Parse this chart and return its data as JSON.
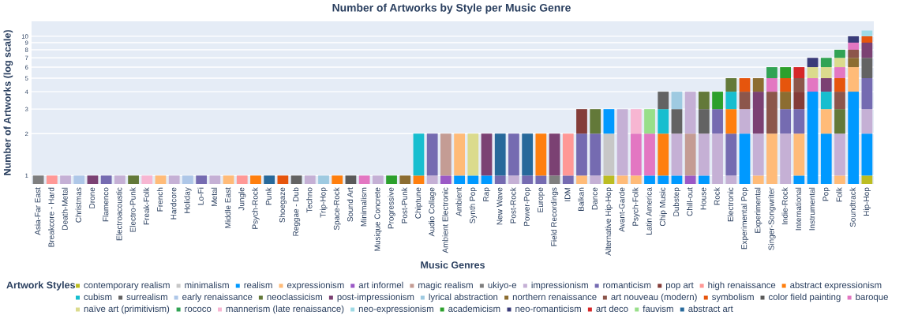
{
  "chart_data": {
    "type": "bar",
    "stacked": true,
    "log": true,
    "grid": "y",
    "legend": "bottom",
    "title": "Number of Artworks by Style per Music Genre",
    "xlabel": "Music Genres",
    "ylabel": "Number of Artworks (log scale)",
    "legend_title": "Artwork Styles",
    "ylim": [
      0.87,
      12.8
    ],
    "yticks": [
      1,
      2,
      3,
      4,
      5,
      6,
      7,
      8,
      9,
      10
    ],
    "categories": [
      "Asia-Far East",
      "Breakcore - Hard",
      "Death-Metal",
      "Christmas",
      "Drone",
      "Flamenco",
      "Electroacoustic",
      "Electro-Punk",
      "Freak-Folk",
      "French",
      "Hardcore",
      "Holiday",
      "Lo-Fi",
      "Metal",
      "Middle East",
      "Jungle",
      "Psych-Rock",
      "Punk",
      "Shoegaze",
      "Reggae - Dub",
      "Techno",
      "Trip-Hop",
      "Space-Rock",
      "Sound Art",
      "Minimalism",
      "Musique Concrete",
      "Progressive",
      "Post-Punk",
      "Chiptune",
      "Audio Collage",
      "Ambient Electronic",
      "Ambient",
      "Synth Pop",
      "Rap",
      "New Wave",
      "Post-Rock",
      "Power-Pop",
      "Europe",
      "Field Recordings",
      "IDM",
      "Balkan",
      "Dance",
      "Alternative Hip-Hop",
      "Avant-Garde",
      "Psych-Folk",
      "Latin America",
      "Chip Music",
      "Dubstep",
      "Chill-out",
      "House",
      "Rock",
      "Electronic",
      "Experimental Pop",
      "Experimental",
      "Singer-Songwriter",
      "Indie-Rock",
      "International",
      "Instrumental",
      "Pop",
      "Folk",
      "Soundtrack",
      "Hip-Hop"
    ],
    "series": [
      {
        "name": "contemporary realism",
        "color": "#bcbd22",
        "values": [
          null,
          null,
          null,
          null,
          null,
          null,
          null,
          null,
          null,
          null,
          null,
          null,
          null,
          null,
          null,
          null,
          null,
          null,
          null,
          null,
          null,
          null,
          null,
          null,
          null,
          null,
          null,
          null,
          null,
          null,
          null,
          null,
          null,
          null,
          null,
          null,
          null,
          null,
          null,
          null,
          null,
          null,
          1,
          null,
          null,
          null,
          null,
          null,
          null,
          null,
          null,
          null,
          null,
          null,
          null,
          null,
          null,
          null,
          null,
          null,
          null,
          1
        ]
      },
      {
        "name": "minimalism",
        "color": "#c7c7c7",
        "values": [
          null,
          null,
          null,
          null,
          null,
          null,
          null,
          null,
          null,
          null,
          null,
          null,
          null,
          null,
          null,
          null,
          null,
          null,
          null,
          null,
          null,
          null,
          null,
          null,
          null,
          null,
          null,
          null,
          null,
          null,
          null,
          null,
          null,
          null,
          null,
          null,
          null,
          null,
          null,
          null,
          null,
          null,
          1,
          null,
          null,
          null,
          null,
          null,
          null,
          null,
          null,
          null,
          null,
          null,
          null,
          null,
          null,
          null,
          null,
          null,
          null,
          null
        ]
      },
      {
        "name": "realism",
        "color": "#0099ff",
        "values": [
          null,
          null,
          null,
          null,
          null,
          null,
          null,
          null,
          null,
          null,
          null,
          null,
          null,
          null,
          null,
          null,
          null,
          null,
          null,
          null,
          null,
          null,
          null,
          null,
          null,
          null,
          null,
          null,
          null,
          null,
          null,
          1,
          1,
          1,
          null,
          null,
          null,
          null,
          null,
          null,
          null,
          null,
          1,
          null,
          null,
          1,
          1,
          1,
          null,
          1,
          null,
          null,
          2,
          null,
          null,
          null,
          1,
          4,
          2,
          null,
          4,
          1
        ]
      },
      {
        "name": "expressionism",
        "color": "#ffbb78",
        "values": [
          null,
          null,
          null,
          null,
          null,
          null,
          null,
          null,
          null,
          1,
          null,
          null,
          null,
          null,
          1,
          null,
          null,
          null,
          null,
          null,
          null,
          null,
          null,
          null,
          null,
          null,
          null,
          null,
          null,
          null,
          null,
          1,
          null,
          null,
          null,
          null,
          null,
          null,
          null,
          null,
          1,
          null,
          null,
          1,
          1,
          null,
          null,
          null,
          null,
          null,
          null,
          null,
          null,
          1,
          2,
          null,
          1,
          null,
          1,
          1,
          2,
          null
        ]
      },
      {
        "name": "art informel",
        "color": "#9b59c6",
        "values": [
          null,
          null,
          null,
          null,
          null,
          null,
          null,
          null,
          null,
          null,
          null,
          null,
          null,
          null,
          null,
          null,
          null,
          null,
          null,
          null,
          null,
          null,
          null,
          null,
          null,
          null,
          null,
          null,
          null,
          null,
          1,
          null,
          null,
          null,
          null,
          null,
          null,
          null,
          null,
          null,
          null,
          null,
          null,
          null,
          null,
          null,
          null,
          null,
          1,
          null,
          null,
          null,
          null,
          null,
          null,
          null,
          null,
          null,
          null,
          null,
          null,
          null
        ]
      },
      {
        "name": "magic realism",
        "color": "#c49c94",
        "values": [
          null,
          null,
          null,
          null,
          null,
          null,
          null,
          null,
          null,
          null,
          null,
          null,
          null,
          null,
          null,
          null,
          null,
          null,
          null,
          null,
          null,
          null,
          null,
          null,
          null,
          null,
          null,
          null,
          null,
          null,
          1,
          null,
          null,
          null,
          null,
          null,
          null,
          null,
          null,
          null,
          null,
          null,
          null,
          null,
          null,
          null,
          null,
          null,
          1,
          null,
          null,
          null,
          null,
          null,
          null,
          null,
          null,
          null,
          null,
          null,
          null,
          null
        ]
      },
      {
        "name": "ukiyo-e",
        "color": "#7f7f7f",
        "values": [
          1,
          null,
          null,
          null,
          null,
          null,
          null,
          null,
          null,
          null,
          null,
          null,
          null,
          null,
          null,
          null,
          null,
          null,
          null,
          null,
          null,
          null,
          null,
          null,
          null,
          null,
          null,
          null,
          null,
          null,
          null,
          null,
          null,
          null,
          null,
          null,
          null,
          null,
          1,
          null,
          null,
          null,
          null,
          null,
          null,
          null,
          null,
          null,
          null,
          null,
          null,
          null,
          null,
          null,
          null,
          null,
          null,
          null,
          null,
          null,
          null,
          null
        ]
      },
      {
        "name": "impressionism",
        "color": "#c5b0d5",
        "values": [
          null,
          null,
          1,
          null,
          null,
          null,
          1,
          null,
          null,
          null,
          1,
          null,
          null,
          1,
          null,
          null,
          null,
          null,
          null,
          null,
          1,
          null,
          null,
          null,
          null,
          1,
          null,
          null,
          null,
          1,
          null,
          null,
          null,
          null,
          null,
          1,
          null,
          null,
          null,
          null,
          null,
          1,
          null,
          2,
          null,
          null,
          null,
          1,
          2,
          1,
          2,
          1,
          1,
          1,
          null,
          2,
          null,
          null,
          null,
          1,
          null,
          1
        ]
      },
      {
        "name": "romanticism",
        "color": "#756bb1",
        "values": [
          null,
          null,
          null,
          null,
          null,
          1,
          null,
          null,
          null,
          null,
          null,
          null,
          1,
          null,
          null,
          null,
          null,
          null,
          null,
          null,
          null,
          null,
          null,
          null,
          null,
          null,
          null,
          null,
          null,
          1,
          null,
          null,
          null,
          null,
          1,
          1,
          1,
          1,
          null,
          1,
          1,
          1,
          null,
          null,
          null,
          null,
          null,
          null,
          null,
          null,
          1,
          1,
          null,
          null,
          null,
          1,
          1,
          null,
          null,
          null,
          null,
          2
        ]
      },
      {
        "name": "pop art",
        "color": "#843c39",
        "values": [
          null,
          null,
          null,
          null,
          null,
          null,
          null,
          null,
          null,
          null,
          null,
          null,
          null,
          null,
          null,
          null,
          null,
          null,
          null,
          null,
          null,
          null,
          null,
          null,
          null,
          null,
          null,
          null,
          null,
          null,
          null,
          null,
          null,
          null,
          null,
          null,
          null,
          null,
          null,
          null,
          1,
          null,
          null,
          null,
          null,
          null,
          null,
          null,
          null,
          null,
          null,
          null,
          null,
          null,
          null,
          null,
          1,
          null,
          null,
          null,
          null,
          null
        ]
      },
      {
        "name": "high renaissance",
        "color": "#ff9896",
        "values": [
          null,
          1,
          null,
          null,
          null,
          null,
          null,
          null,
          null,
          null,
          null,
          null,
          null,
          null,
          null,
          1,
          null,
          null,
          null,
          null,
          null,
          null,
          null,
          null,
          null,
          null,
          null,
          null,
          null,
          null,
          null,
          null,
          null,
          null,
          null,
          null,
          null,
          null,
          null,
          1,
          null,
          null,
          null,
          null,
          null,
          null,
          null,
          null,
          null,
          null,
          null,
          null,
          null,
          null,
          null,
          null,
          null,
          null,
          null,
          null,
          null,
          null
        ]
      },
      {
        "name": "abstract expressionism",
        "color": "#ff7f0e",
        "values": [
          null,
          null,
          null,
          null,
          null,
          null,
          null,
          null,
          null,
          null,
          null,
          null,
          null,
          null,
          null,
          null,
          1,
          null,
          null,
          null,
          null,
          null,
          1,
          null,
          null,
          null,
          null,
          null,
          1,
          null,
          null,
          null,
          null,
          null,
          null,
          null,
          null,
          1,
          null,
          null,
          null,
          null,
          null,
          null,
          null,
          null,
          1,
          null,
          null,
          null,
          null,
          1,
          null,
          null,
          null,
          null,
          null,
          null,
          null,
          null,
          null,
          null
        ]
      },
      {
        "name": "cubism",
        "color": "#17becf",
        "values": [
          null,
          null,
          null,
          null,
          null,
          null,
          null,
          null,
          null,
          null,
          null,
          null,
          null,
          null,
          null,
          null,
          null,
          null,
          null,
          null,
          null,
          null,
          null,
          null,
          null,
          null,
          null,
          null,
          1,
          null,
          null,
          null,
          null,
          null,
          null,
          null,
          null,
          null,
          null,
          null,
          null,
          null,
          null,
          null,
          null,
          null,
          1,
          null,
          null,
          null,
          null,
          1,
          null,
          null,
          null,
          null,
          null,
          null,
          1,
          null,
          null,
          null
        ]
      },
      {
        "name": "surrealism",
        "color": "#636363",
        "values": [
          null,
          null,
          null,
          null,
          null,
          null,
          null,
          null,
          null,
          null,
          null,
          null,
          null,
          null,
          null,
          null,
          null,
          null,
          null,
          1,
          null,
          null,
          null,
          null,
          null,
          null,
          null,
          null,
          null,
          null,
          null,
          null,
          null,
          null,
          null,
          null,
          null,
          null,
          null,
          null,
          null,
          null,
          null,
          null,
          null,
          null,
          1,
          1,
          null,
          1,
          null,
          null,
          null,
          null,
          null,
          null,
          null,
          null,
          null,
          null,
          null,
          2
        ]
      },
      {
        "name": "early renaissance",
        "color": "#aec7e8",
        "values": [
          null,
          null,
          null,
          1,
          null,
          null,
          null,
          null,
          null,
          null,
          null,
          1,
          null,
          null,
          null,
          null,
          null,
          null,
          null,
          null,
          null,
          null,
          null,
          null,
          null,
          null,
          null,
          null,
          null,
          null,
          null,
          null,
          null,
          null,
          null,
          null,
          null,
          null,
          null,
          null,
          null,
          null,
          null,
          null,
          null,
          null,
          null,
          null,
          null,
          null,
          null,
          null,
          null,
          null,
          null,
          null,
          null,
          null,
          null,
          null,
          null,
          null
        ]
      },
      {
        "name": "neoclassicism",
        "color": "#637939",
        "values": [
          null,
          null,
          null,
          null,
          null,
          null,
          null,
          1,
          null,
          null,
          null,
          null,
          null,
          null,
          null,
          null,
          null,
          null,
          null,
          null,
          null,
          null,
          null,
          null,
          null,
          null,
          null,
          null,
          null,
          null,
          null,
          null,
          null,
          null,
          null,
          null,
          null,
          null,
          null,
          null,
          null,
          1,
          null,
          null,
          null,
          null,
          null,
          null,
          null,
          1,
          null,
          1,
          null,
          null,
          null,
          null,
          null,
          null,
          null,
          1,
          null,
          null
        ]
      },
      {
        "name": "post-impressionism",
        "color": "#7b4173",
        "values": [
          null,
          null,
          null,
          null,
          1,
          null,
          null,
          null,
          null,
          null,
          null,
          null,
          null,
          null,
          null,
          null,
          null,
          null,
          null,
          null,
          null,
          null,
          null,
          null,
          null,
          null,
          null,
          null,
          null,
          null,
          null,
          null,
          null,
          1,
          null,
          null,
          null,
          null,
          1,
          null,
          null,
          null,
          null,
          null,
          null,
          null,
          null,
          null,
          null,
          null,
          null,
          null,
          null,
          2,
          null,
          null,
          null,
          null,
          1,
          null,
          null,
          2
        ]
      },
      {
        "name": "lyrical abstraction",
        "color": "#9ecae1",
        "values": [
          null,
          null,
          null,
          null,
          null,
          null,
          null,
          null,
          null,
          null,
          null,
          null,
          null,
          null,
          null,
          null,
          null,
          null,
          null,
          null,
          null,
          1,
          null,
          null,
          null,
          null,
          null,
          null,
          null,
          null,
          null,
          null,
          null,
          null,
          null,
          null,
          null,
          null,
          null,
          null,
          null,
          null,
          null,
          null,
          null,
          null,
          null,
          1,
          null,
          null,
          null,
          null,
          null,
          null,
          null,
          null,
          null,
          null,
          null,
          null,
          null,
          null
        ]
      },
      {
        "name": "northern renaissance",
        "color": "#8c6d31",
        "values": [
          null,
          null,
          null,
          null,
          null,
          null,
          null,
          null,
          null,
          null,
          null,
          null,
          null,
          null,
          null,
          null,
          null,
          null,
          null,
          null,
          null,
          null,
          null,
          null,
          null,
          null,
          null,
          1,
          null,
          null,
          null,
          null,
          null,
          null,
          null,
          null,
          null,
          null,
          null,
          null,
          null,
          null,
          null,
          null,
          null,
          null,
          null,
          null,
          null,
          null,
          null,
          null,
          null,
          1,
          null,
          1,
          null,
          null,
          null,
          null,
          1,
          null
        ]
      },
      {
        "name": "art nouveau (modern)",
        "color": "#8c564b",
        "values": [
          null,
          null,
          null,
          null,
          null,
          null,
          null,
          null,
          null,
          null,
          null,
          null,
          null,
          null,
          null,
          null,
          null,
          null,
          null,
          null,
          null,
          null,
          null,
          null,
          null,
          null,
          null,
          null,
          null,
          null,
          null,
          null,
          null,
          null,
          null,
          null,
          null,
          null,
          null,
          null,
          null,
          null,
          null,
          null,
          null,
          null,
          null,
          null,
          null,
          null,
          null,
          null,
          1,
          null,
          2,
          null,
          1,
          null,
          null,
          1,
          1,
          null
        ]
      },
      {
        "name": "symbolism",
        "color": "#e6550d",
        "values": [
          null,
          null,
          null,
          null,
          null,
          null,
          null,
          null,
          null,
          null,
          null,
          null,
          null,
          null,
          null,
          null,
          null,
          null,
          1,
          null,
          null,
          null,
          null,
          null,
          null,
          null,
          null,
          null,
          null,
          null,
          null,
          null,
          null,
          null,
          null,
          null,
          null,
          null,
          null,
          null,
          null,
          null,
          null,
          null,
          null,
          null,
          null,
          null,
          null,
          null,
          null,
          null,
          1,
          null,
          null,
          1,
          null,
          null,
          null,
          1,
          null,
          1
        ]
      },
      {
        "name": "color field painting",
        "color": "#5a5a5a",
        "values": [
          null,
          null,
          null,
          null,
          null,
          null,
          null,
          null,
          null,
          null,
          null,
          null,
          null,
          null,
          null,
          null,
          null,
          null,
          null,
          null,
          null,
          null,
          null,
          1,
          null,
          null,
          null,
          null,
          null,
          null,
          null,
          null,
          null,
          null,
          null,
          null,
          null,
          null,
          null,
          null,
          null,
          null,
          null,
          null,
          null,
          null,
          null,
          null,
          null,
          null,
          null,
          null,
          null,
          null,
          null,
          null,
          null,
          null,
          null,
          null,
          null,
          null
        ]
      },
      {
        "name": "baroque",
        "color": "#e377c2",
        "values": [
          null,
          null,
          null,
          null,
          null,
          null,
          null,
          null,
          null,
          null,
          null,
          null,
          null,
          null,
          null,
          null,
          null,
          null,
          null,
          null,
          null,
          null,
          null,
          null,
          1,
          null,
          null,
          null,
          null,
          null,
          null,
          null,
          null,
          null,
          null,
          null,
          null,
          null,
          null,
          null,
          null,
          null,
          null,
          null,
          1,
          1,
          null,
          null,
          null,
          null,
          null,
          null,
          null,
          null,
          1,
          null,
          null,
          1,
          null,
          1,
          1,
          null
        ]
      },
      {
        "name": "naïve art (primitivism)",
        "color": "#dbdb8d",
        "values": [
          null,
          null,
          null,
          null,
          null,
          null,
          null,
          null,
          null,
          null,
          null,
          null,
          null,
          null,
          null,
          null,
          null,
          null,
          null,
          null,
          null,
          null,
          null,
          null,
          null,
          null,
          null,
          null,
          null,
          null,
          null,
          null,
          1,
          null,
          null,
          null,
          null,
          null,
          null,
          null,
          null,
          null,
          null,
          null,
          null,
          null,
          null,
          null,
          null,
          null,
          null,
          null,
          null,
          null,
          null,
          null,
          null,
          1,
          1,
          1,
          null,
          null
        ]
      },
      {
        "name": "rococo",
        "color": "#31a354",
        "values": [
          null,
          null,
          null,
          null,
          null,
          null,
          null,
          null,
          null,
          null,
          null,
          null,
          null,
          null,
          null,
          null,
          null,
          null,
          null,
          null,
          null,
          null,
          null,
          null,
          null,
          null,
          null,
          null,
          null,
          null,
          null,
          null,
          null,
          null,
          null,
          null,
          null,
          null,
          null,
          null,
          null,
          null,
          null,
          null,
          null,
          null,
          null,
          null,
          null,
          null,
          null,
          null,
          null,
          null,
          1,
          null,
          null,
          null,
          1,
          1,
          null,
          null
        ]
      },
      {
        "name": "mannerism (late renaissance)",
        "color": "#f7b6d2",
        "values": [
          null,
          null,
          null,
          null,
          null,
          null,
          null,
          null,
          1,
          null,
          null,
          null,
          null,
          null,
          null,
          null,
          null,
          null,
          null,
          null,
          null,
          null,
          null,
          null,
          null,
          null,
          null,
          null,
          null,
          null,
          null,
          null,
          null,
          null,
          null,
          null,
          null,
          null,
          null,
          null,
          null,
          null,
          null,
          null,
          1,
          null,
          null,
          null,
          null,
          null,
          null,
          null,
          null,
          null,
          null,
          null,
          null,
          null,
          null,
          null,
          null,
          null
        ]
      },
      {
        "name": "neo-expressionism",
        "color": "#9edae5",
        "values": [
          null,
          null,
          null,
          null,
          null,
          null,
          null,
          null,
          null,
          null,
          null,
          null,
          null,
          null,
          null,
          null,
          null,
          null,
          null,
          null,
          null,
          null,
          null,
          null,
          null,
          null,
          null,
          null,
          null,
          null,
          null,
          null,
          null,
          null,
          null,
          null,
          null,
          null,
          null,
          null,
          null,
          null,
          null,
          null,
          null,
          null,
          null,
          null,
          null,
          null,
          null,
          null,
          null,
          null,
          null,
          null,
          null,
          null,
          null,
          null,
          null,
          1
        ]
      },
      {
        "name": "academicism",
        "color": "#2ca02c",
        "values": [
          null,
          null,
          null,
          null,
          null,
          null,
          null,
          null,
          null,
          null,
          null,
          null,
          null,
          null,
          null,
          null,
          null,
          null,
          null,
          null,
          null,
          null,
          null,
          null,
          null,
          null,
          1,
          null,
          null,
          null,
          null,
          null,
          null,
          null,
          null,
          null,
          null,
          null,
          null,
          null,
          null,
          null,
          null,
          null,
          null,
          null,
          null,
          null,
          null,
          null,
          1,
          null,
          null,
          null,
          null,
          1,
          null,
          null,
          null,
          null,
          null,
          null
        ]
      },
      {
        "name": "neo-romanticism",
        "color": "#393b79",
        "values": [
          null,
          null,
          null,
          null,
          null,
          null,
          null,
          null,
          null,
          null,
          null,
          null,
          null,
          null,
          null,
          null,
          null,
          null,
          null,
          null,
          null,
          null,
          null,
          null,
          null,
          null,
          null,
          null,
          null,
          null,
          null,
          null,
          null,
          null,
          null,
          null,
          null,
          null,
          null,
          null,
          null,
          null,
          null,
          null,
          null,
          null,
          null,
          null,
          null,
          null,
          null,
          null,
          null,
          null,
          null,
          null,
          null,
          1,
          null,
          null,
          1,
          null
        ]
      },
      {
        "name": "art deco",
        "color": "#d62728",
        "values": [
          null,
          null,
          null,
          null,
          null,
          null,
          null,
          null,
          null,
          null,
          null,
          null,
          null,
          null,
          null,
          null,
          null,
          null,
          null,
          null,
          null,
          null,
          null,
          null,
          null,
          null,
          null,
          null,
          null,
          null,
          null,
          null,
          null,
          null,
          null,
          null,
          null,
          null,
          null,
          null,
          null,
          null,
          null,
          null,
          null,
          null,
          null,
          null,
          null,
          null,
          null,
          null,
          null,
          null,
          null,
          null,
          1,
          null,
          null,
          null,
          null,
          null
        ]
      },
      {
        "name": "fauvism",
        "color": "#98df8a",
        "values": [
          null,
          null,
          null,
          null,
          null,
          null,
          null,
          null,
          null,
          null,
          null,
          null,
          null,
          null,
          null,
          null,
          null,
          null,
          null,
          null,
          null,
          null,
          null,
          null,
          null,
          null,
          null,
          null,
          null,
          null,
          null,
          null,
          null,
          null,
          null,
          null,
          null,
          null,
          null,
          null,
          null,
          null,
          null,
          null,
          null,
          1,
          null,
          null,
          null,
          null,
          null,
          null,
          null,
          null,
          null,
          null,
          null,
          null,
          null,
          null,
          null,
          null
        ]
      },
      {
        "name": "abstract art",
        "color": "#27699b",
        "values": [
          null,
          null,
          null,
          null,
          null,
          null,
          null,
          null,
          null,
          null,
          null,
          null,
          null,
          null,
          null,
          null,
          null,
          1,
          null,
          null,
          null,
          null,
          null,
          null,
          null,
          null,
          null,
          null,
          null,
          null,
          null,
          null,
          null,
          null,
          1,
          null,
          1,
          null,
          null,
          null,
          null,
          null,
          null,
          null,
          null,
          null,
          null,
          null,
          null,
          null,
          null,
          null,
          null,
          null,
          null,
          null,
          null,
          null,
          null,
          null,
          null,
          null
        ]
      }
    ]
  }
}
